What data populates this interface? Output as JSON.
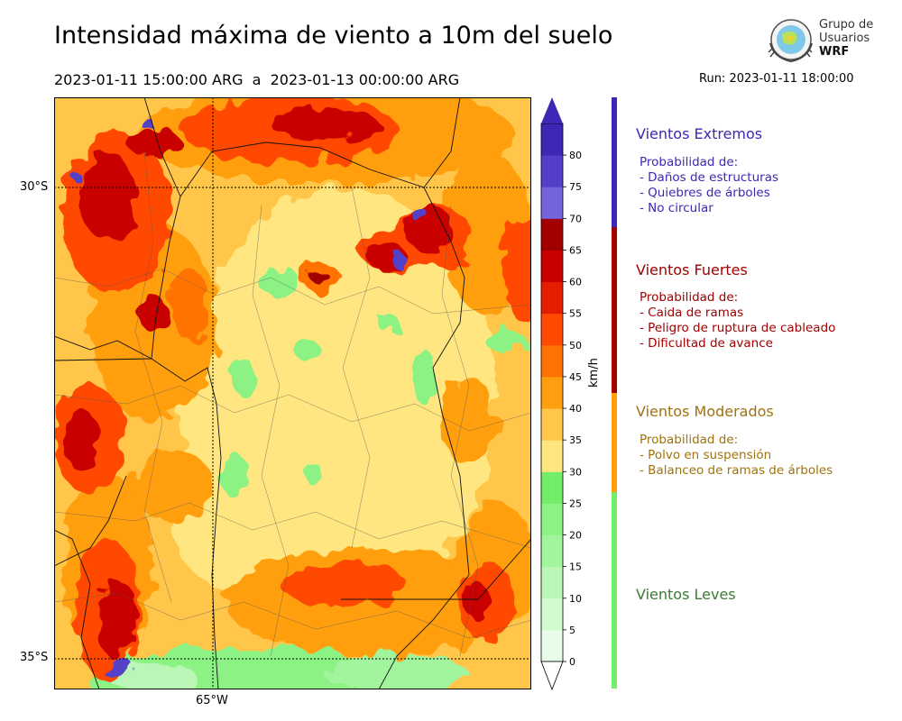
{
  "header": {
    "title": "Intensidad máxima de viento a 10m del suelo",
    "period": "2023-01-11 15:00:00 ARG  a  2023-01-13 00:00:00 ARG",
    "run": "Run: 2023-01-11 18:00:00"
  },
  "logo": {
    "line1": "Grupo de",
    "line2": "Usuarios",
    "line3": "WRF"
  },
  "map": {
    "lat_labels": [
      "30°S",
      "35°S"
    ],
    "lon_label": "65°W"
  },
  "colorbar": {
    "units": "km/h",
    "ticks": [
      "0",
      "5",
      "10",
      "15",
      "20",
      "25",
      "30",
      "35",
      "40",
      "45",
      "50",
      "55",
      "60",
      "65",
      "70",
      "75",
      "80"
    ],
    "colors": [
      "#e8fce8",
      "#d2fbd0",
      "#baf7b6",
      "#a2f59c",
      "#8cf283",
      "#74ee6a",
      "#ffe680",
      "#ffc64a",
      "#ff9f0f",
      "#ff7305",
      "#ff4a00",
      "#e51e00",
      "#c80000",
      "#a10000",
      "#7464de",
      "#5440c8",
      "#3c28b4"
    ],
    "extend_top_color": "#3c28b4",
    "extend_bottom_color": "#ffffff"
  },
  "categories": [
    {
      "title": "Vientos Extremos",
      "color": "#3c28b4",
      "lines": [
        "Probabilidad de:",
        "- Daños de estructuras",
        "- Quiebres de árboles",
        "- No circular"
      ]
    },
    {
      "title": "Vientos Fuertes",
      "color": "#a10000",
      "lines": [
        "Probabilidad de:",
        "- Caida de ramas",
        "- Peligro de ruptura de cableado",
        "- Dificultad de avance"
      ]
    },
    {
      "title": "Vientos Moderados",
      "color": "#a0720a",
      "lines": [
        "Probabilidad de:",
        "- Polvo en suspensión",
        "- Balanceo de ramas de árboles"
      ]
    },
    {
      "title": "Vientos Leves",
      "color": "#3a7a32",
      "lines": []
    }
  ]
}
